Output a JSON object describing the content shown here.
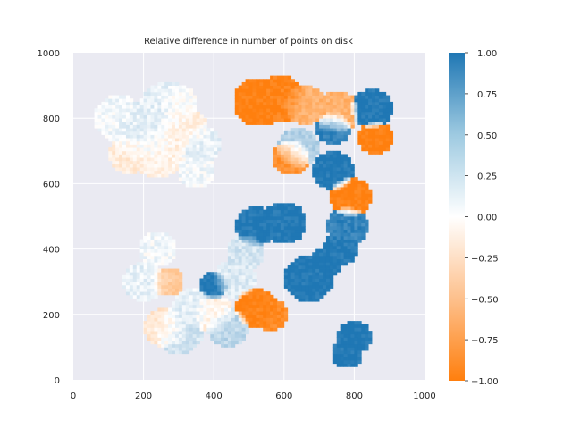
{
  "chart_data": {
    "type": "heatmap",
    "title": "Relative difference in number of points on disk",
    "xlabel": "",
    "ylabel": "",
    "xlim": [
      0,
      1000
    ],
    "ylim": [
      0,
      1000
    ],
    "xticks": [
      "0",
      "200",
      "400",
      "600",
      "800",
      "1000"
    ],
    "yticks": [
      "0",
      "200",
      "400",
      "600",
      "800",
      "1000"
    ],
    "grid": true,
    "colorbar": {
      "range": [
        -1.0,
        1.0
      ],
      "ticks": [
        "1.00",
        "0.75",
        "0.50",
        "0.25",
        "0.00",
        "−0.25",
        "−0.50",
        "−0.75",
        "−1.00"
      ],
      "low_color": "#ff7f0e",
      "mid_color": "#ffffff",
      "high_color": "#1f77b4"
    },
    "blobs": [
      {
        "cx": 130,
        "cy": 800,
        "r": 70,
        "value": 0.05
      },
      {
        "cx": 200,
        "cy": 760,
        "r": 90,
        "value": 0.15
      },
      {
        "cx": 270,
        "cy": 830,
        "r": 80,
        "value": 0.1
      },
      {
        "cx": 310,
        "cy": 770,
        "r": 70,
        "value": -0.15
      },
      {
        "cx": 240,
        "cy": 700,
        "r": 80,
        "value": -0.1
      },
      {
        "cx": 160,
        "cy": 690,
        "r": 60,
        "value": -0.15
      },
      {
        "cx": 360,
        "cy": 720,
        "r": 60,
        "value": 0.1
      },
      {
        "cx": 350,
        "cy": 640,
        "r": 55,
        "value": 0.05
      },
      {
        "cx": 300,
        "cy": 850,
        "r": 50,
        "value": -0.05
      },
      {
        "cx": 530,
        "cy": 850,
        "r": 75,
        "value": -1.0
      },
      {
        "cx": 590,
        "cy": 860,
        "r": 70,
        "value": -0.95
      },
      {
        "cx": 660,
        "cy": 840,
        "r": 60,
        "value": -0.6
      },
      {
        "cx": 750,
        "cy": 820,
        "r": 65,
        "value": -0.6
      },
      {
        "cx": 850,
        "cy": 830,
        "r": 60,
        "value": 1.0
      },
      {
        "cx": 860,
        "cy": 740,
        "r": 50,
        "value": -1.0
      },
      {
        "cx": 740,
        "cy": 770,
        "r": 50,
        "value": 0.9
      },
      {
        "cx": 640,
        "cy": 710,
        "r": 60,
        "value": 0.35
      },
      {
        "cx": 620,
        "cy": 680,
        "r": 55,
        "value": -0.85
      },
      {
        "cx": 740,
        "cy": 640,
        "r": 60,
        "value": 1.0
      },
      {
        "cx": 790,
        "cy": 560,
        "r": 60,
        "value": -1.0
      },
      {
        "cx": 600,
        "cy": 480,
        "r": 65,
        "value": 1.0
      },
      {
        "cx": 520,
        "cy": 470,
        "r": 60,
        "value": 1.0
      },
      {
        "cx": 780,
        "cy": 470,
        "r": 60,
        "value": 0.9
      },
      {
        "cx": 760,
        "cy": 400,
        "r": 50,
        "value": 1.0
      },
      {
        "cx": 670,
        "cy": 310,
        "r": 70,
        "value": 1.0
      },
      {
        "cx": 720,
        "cy": 360,
        "r": 45,
        "value": 1.0
      },
      {
        "cx": 800,
        "cy": 130,
        "r": 50,
        "value": 1.0
      },
      {
        "cx": 780,
        "cy": 80,
        "r": 45,
        "value": 1.0
      },
      {
        "cx": 460,
        "cy": 310,
        "r": 60,
        "value": 0.15
      },
      {
        "cx": 490,
        "cy": 390,
        "r": 55,
        "value": 0.2
      },
      {
        "cx": 240,
        "cy": 400,
        "r": 55,
        "value": 0.05
      },
      {
        "cx": 200,
        "cy": 300,
        "r": 60,
        "value": 0.1
      },
      {
        "cx": 270,
        "cy": 300,
        "r": 45,
        "value": -0.4
      },
      {
        "cx": 400,
        "cy": 290,
        "r": 40,
        "value": 1.0
      },
      {
        "cx": 300,
        "cy": 150,
        "r": 70,
        "value": 0.2
      },
      {
        "cx": 260,
        "cy": 160,
        "r": 60,
        "value": -0.2
      },
      {
        "cx": 340,
        "cy": 220,
        "r": 60,
        "value": 0.1
      },
      {
        "cx": 400,
        "cy": 200,
        "r": 60,
        "value": -0.1
      },
      {
        "cx": 440,
        "cy": 160,
        "r": 60,
        "value": 0.3
      },
      {
        "cx": 520,
        "cy": 220,
        "r": 60,
        "value": -1.0
      },
      {
        "cx": 560,
        "cy": 200,
        "r": 50,
        "value": -0.9
      }
    ]
  }
}
